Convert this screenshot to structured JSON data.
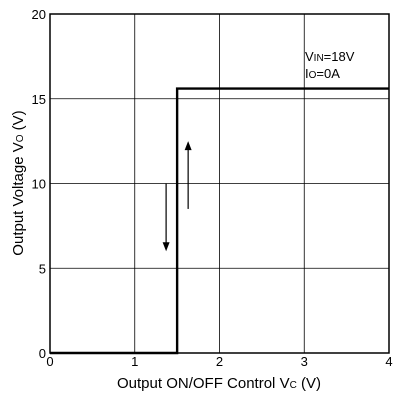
{
  "chart_data": {
    "type": "line",
    "title": "",
    "xlabel": "Output ON/OFF Control",
    "xlabel_symbol": "V",
    "xlabel_subscript": "C",
    "xlabel_unit": "(V)",
    "ylabel": "Output Voltage",
    "ylabel_symbol": "V",
    "ylabel_subscript": "O",
    "ylabel_unit": "(V)",
    "xlim": [
      0,
      4
    ],
    "ylim": [
      0,
      20
    ],
    "x_ticks": [
      0,
      1,
      2,
      3,
      4
    ],
    "y_ticks": [
      0,
      5,
      10,
      15,
      20
    ],
    "grid": true,
    "series": [
      {
        "x": [
          0,
          1.5,
          1.5,
          4
        ],
        "y": [
          0,
          0,
          15.6,
          15.6
        ]
      }
    ],
    "conditions": [
      {
        "symbol": "V",
        "subscript": "IN",
        "value": "=18V"
      },
      {
        "symbol": "I",
        "subscript": "O",
        "value": "=0A"
      }
    ],
    "arrows": [
      {
        "direction": "down",
        "x": 1.37,
        "y_from": 10.0,
        "y_to": 6.0
      },
      {
        "direction": "up",
        "x": 1.63,
        "y_from": 8.5,
        "y_to": 12.5
      }
    ]
  }
}
